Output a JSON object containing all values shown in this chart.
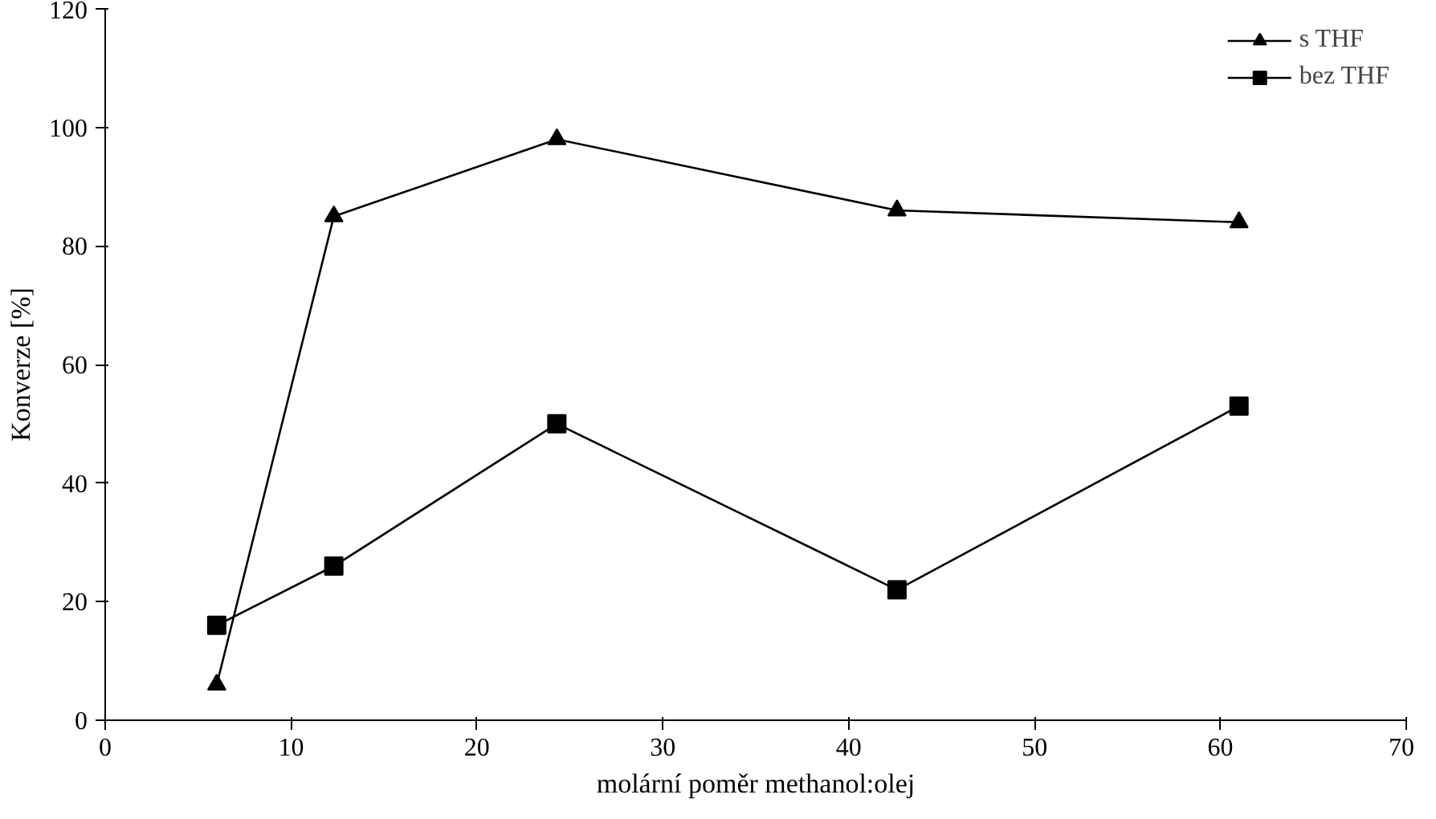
{
  "chart_data": {
    "type": "line",
    "xlabel": "molární poměr methanol:olej",
    "ylabel": "Konverze [%]",
    "x": [
      6,
      12.3,
      24.3,
      42.6,
      61
    ],
    "series": [
      {
        "name": "s THF",
        "color": "#000000",
        "marker": "triangle",
        "values": [
          6,
          85,
          98,
          86,
          84
        ]
      },
      {
        "name": "bez THF",
        "color": "#000000",
        "marker": "square",
        "values": [
          16,
          26,
          50,
          22,
          53
        ]
      }
    ],
    "xlim": [
      0,
      70
    ],
    "xticks": [
      0,
      10,
      20,
      30,
      40,
      50,
      60,
      70
    ],
    "ylim": [
      0,
      120
    ],
    "yticks": [
      0,
      20,
      40,
      60,
      80,
      100,
      120
    ],
    "grid": false,
    "legend": "top right",
    "line_style": "solid"
  }
}
